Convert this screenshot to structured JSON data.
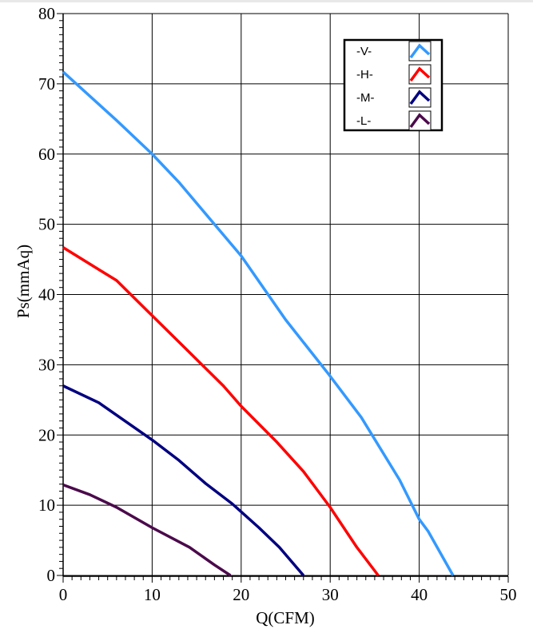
{
  "chart_data": {
    "type": "line",
    "title": "",
    "xlabel": "Q(CFM)",
    "ylabel": "Ps(mmAq)",
    "xlim": [
      0,
      50
    ],
    "ylim": [
      0,
      80
    ],
    "xticks": [
      0,
      10,
      20,
      30,
      40,
      50
    ],
    "yticks": [
      0,
      10,
      20,
      30,
      40,
      50,
      60,
      70,
      80
    ],
    "grid": true,
    "legend_position": "top-right",
    "series": [
      {
        "name": "-V-",
        "color": "#3399ff",
        "x": [
          0,
          6,
          10,
          13,
          17,
          20,
          25,
          29.8,
          33.5,
          37.8,
          40,
          41,
          43.8
        ],
        "y": [
          71.7,
          64.8,
          60,
          56,
          50,
          45.5,
          36.4,
          28.7,
          22.5,
          13.6,
          8,
          6.3,
          0
        ]
      },
      {
        "name": "-H-",
        "color": "#ff0000",
        "x": [
          0,
          6,
          10,
          14,
          18,
          20,
          24,
          27,
          30,
          33,
          35.4
        ],
        "y": [
          46.7,
          42,
          37,
          32,
          27,
          24.1,
          19,
          14.8,
          9.7,
          4,
          0
        ]
      },
      {
        "name": "-M-",
        "color": "#000080",
        "x": [
          0,
          4,
          10,
          13,
          16,
          19,
          22,
          24.3,
          27
        ],
        "y": [
          27,
          24.6,
          19.3,
          16.4,
          13.1,
          10.2,
          6.8,
          4,
          0
        ]
      },
      {
        "name": "-L-",
        "color": "#4b0a4b",
        "x": [
          0,
          3,
          6,
          10,
          14.2,
          17,
          18.8
        ],
        "y": [
          12.9,
          11.5,
          9.7,
          6.8,
          4,
          1.5,
          0
        ]
      }
    ]
  }
}
